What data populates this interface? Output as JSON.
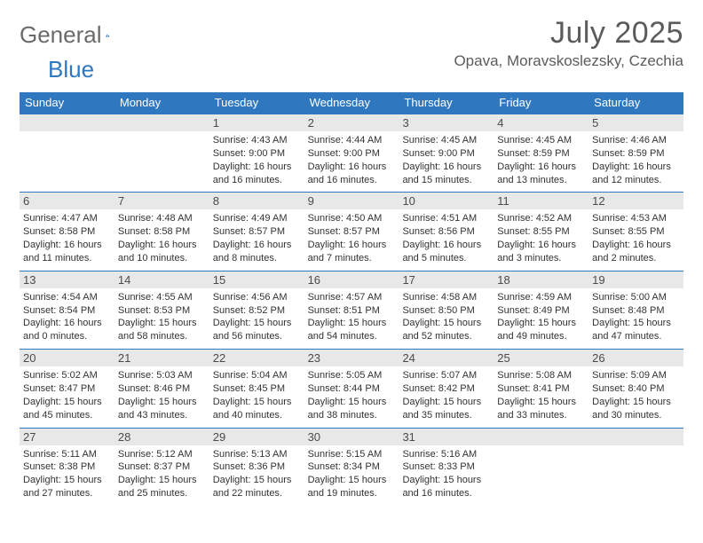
{
  "logo": {
    "word1": "General",
    "word2": "Blue"
  },
  "title": "July 2025",
  "location": "Opava, Moravskoslezsky, Czechia",
  "colors": {
    "header_bg": "#2f78bf",
    "header_text": "#ffffff",
    "band_bg": "#e8e8e8",
    "text": "#333333",
    "title_text": "#5b5b5b",
    "logo_gray": "#6a6a6a",
    "logo_blue": "#2f78bf"
  },
  "day_headers": [
    "Sunday",
    "Monday",
    "Tuesday",
    "Wednesday",
    "Thursday",
    "Friday",
    "Saturday"
  ],
  "weeks": [
    [
      {
        "empty": true
      },
      {
        "empty": true
      },
      {
        "day": "1",
        "sunrise": "4:43 AM",
        "sunset": "9:00 PM",
        "daylight": "16 hours and 16 minutes."
      },
      {
        "day": "2",
        "sunrise": "4:44 AM",
        "sunset": "9:00 PM",
        "daylight": "16 hours and 16 minutes."
      },
      {
        "day": "3",
        "sunrise": "4:45 AM",
        "sunset": "9:00 PM",
        "daylight": "16 hours and 15 minutes."
      },
      {
        "day": "4",
        "sunrise": "4:45 AM",
        "sunset": "8:59 PM",
        "daylight": "16 hours and 13 minutes."
      },
      {
        "day": "5",
        "sunrise": "4:46 AM",
        "sunset": "8:59 PM",
        "daylight": "16 hours and 12 minutes."
      }
    ],
    [
      {
        "day": "6",
        "sunrise": "4:47 AM",
        "sunset": "8:58 PM",
        "daylight": "16 hours and 11 minutes."
      },
      {
        "day": "7",
        "sunrise": "4:48 AM",
        "sunset": "8:58 PM",
        "daylight": "16 hours and 10 minutes."
      },
      {
        "day": "8",
        "sunrise": "4:49 AM",
        "sunset": "8:57 PM",
        "daylight": "16 hours and 8 minutes."
      },
      {
        "day": "9",
        "sunrise": "4:50 AM",
        "sunset": "8:57 PM",
        "daylight": "16 hours and 7 minutes."
      },
      {
        "day": "10",
        "sunrise": "4:51 AM",
        "sunset": "8:56 PM",
        "daylight": "16 hours and 5 minutes."
      },
      {
        "day": "11",
        "sunrise": "4:52 AM",
        "sunset": "8:55 PM",
        "daylight": "16 hours and 3 minutes."
      },
      {
        "day": "12",
        "sunrise": "4:53 AM",
        "sunset": "8:55 PM",
        "daylight": "16 hours and 2 minutes."
      }
    ],
    [
      {
        "day": "13",
        "sunrise": "4:54 AM",
        "sunset": "8:54 PM",
        "daylight": "16 hours and 0 minutes."
      },
      {
        "day": "14",
        "sunrise": "4:55 AM",
        "sunset": "8:53 PM",
        "daylight": "15 hours and 58 minutes."
      },
      {
        "day": "15",
        "sunrise": "4:56 AM",
        "sunset": "8:52 PM",
        "daylight": "15 hours and 56 minutes."
      },
      {
        "day": "16",
        "sunrise": "4:57 AM",
        "sunset": "8:51 PM",
        "daylight": "15 hours and 54 minutes."
      },
      {
        "day": "17",
        "sunrise": "4:58 AM",
        "sunset": "8:50 PM",
        "daylight": "15 hours and 52 minutes."
      },
      {
        "day": "18",
        "sunrise": "4:59 AM",
        "sunset": "8:49 PM",
        "daylight": "15 hours and 49 minutes."
      },
      {
        "day": "19",
        "sunrise": "5:00 AM",
        "sunset": "8:48 PM",
        "daylight": "15 hours and 47 minutes."
      }
    ],
    [
      {
        "day": "20",
        "sunrise": "5:02 AM",
        "sunset": "8:47 PM",
        "daylight": "15 hours and 45 minutes."
      },
      {
        "day": "21",
        "sunrise": "5:03 AM",
        "sunset": "8:46 PM",
        "daylight": "15 hours and 43 minutes."
      },
      {
        "day": "22",
        "sunrise": "5:04 AM",
        "sunset": "8:45 PM",
        "daylight": "15 hours and 40 minutes."
      },
      {
        "day": "23",
        "sunrise": "5:05 AM",
        "sunset": "8:44 PM",
        "daylight": "15 hours and 38 minutes."
      },
      {
        "day": "24",
        "sunrise": "5:07 AM",
        "sunset": "8:42 PM",
        "daylight": "15 hours and 35 minutes."
      },
      {
        "day": "25",
        "sunrise": "5:08 AM",
        "sunset": "8:41 PM",
        "daylight": "15 hours and 33 minutes."
      },
      {
        "day": "26",
        "sunrise": "5:09 AM",
        "sunset": "8:40 PM",
        "daylight": "15 hours and 30 minutes."
      }
    ],
    [
      {
        "day": "27",
        "sunrise": "5:11 AM",
        "sunset": "8:38 PM",
        "daylight": "15 hours and 27 minutes."
      },
      {
        "day": "28",
        "sunrise": "5:12 AM",
        "sunset": "8:37 PM",
        "daylight": "15 hours and 25 minutes."
      },
      {
        "day": "29",
        "sunrise": "5:13 AM",
        "sunset": "8:36 PM",
        "daylight": "15 hours and 22 minutes."
      },
      {
        "day": "30",
        "sunrise": "5:15 AM",
        "sunset": "8:34 PM",
        "daylight": "15 hours and 19 minutes."
      },
      {
        "day": "31",
        "sunrise": "5:16 AM",
        "sunset": "8:33 PM",
        "daylight": "15 hours and 16 minutes."
      },
      {
        "empty": true
      },
      {
        "empty": true
      }
    ]
  ],
  "labels": {
    "sunrise_prefix": "Sunrise: ",
    "sunset_prefix": "Sunset: ",
    "daylight_prefix": "Daylight: "
  }
}
